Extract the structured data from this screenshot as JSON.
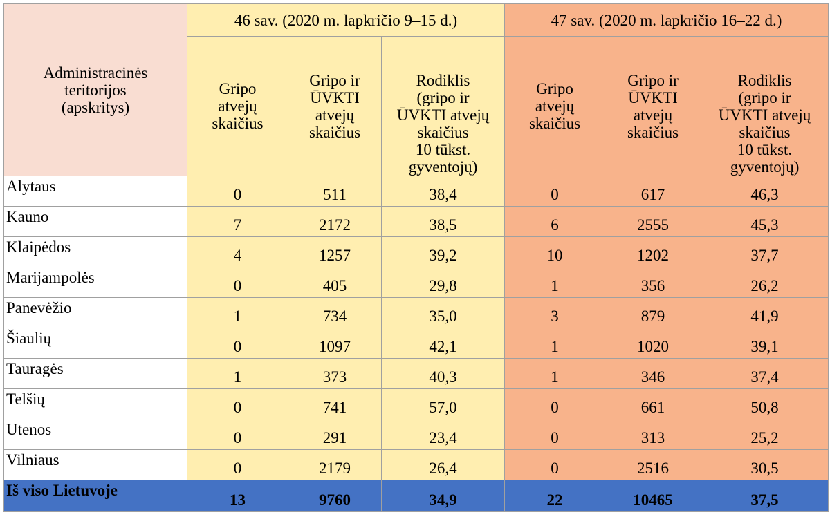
{
  "header": {
    "admin_col": [
      "Administracinės",
      "teritorijos",
      "(apskritys)"
    ],
    "week46": "46 sav. (2020 m. lapkričio 9–15 d.)",
    "week47": "47 sav. (2020 m. lapkričio 16–22 d.)",
    "col_flu": [
      "Gripo",
      "atvejų",
      "skaičius"
    ],
    "col_flu_uvkti": [
      "Gripo ir",
      "ŪVKTI",
      "atvejų",
      "skaičius"
    ],
    "col_rate": [
      "Rodiklis",
      "(gripo ir",
      "ŪVKTI atvejų",
      "skaičius",
      "10 tūkst.",
      "gyventojų)"
    ]
  },
  "rows": [
    {
      "name": "Alytaus",
      "w46_flu": "0",
      "w46_all": "511",
      "w46_rate": "38,4",
      "w47_flu": "0",
      "w47_all": "617",
      "w47_rate": "46,3"
    },
    {
      "name": "Kauno",
      "w46_flu": "7",
      "w46_all": "2172",
      "w46_rate": "38,5",
      "w47_flu": "6",
      "w47_all": "2555",
      "w47_rate": "45,3"
    },
    {
      "name": "Klaipėdos",
      "w46_flu": "4",
      "w46_all": "1257",
      "w46_rate": "39,2",
      "w47_flu": "10",
      "w47_all": "1202",
      "w47_rate": "37,7"
    },
    {
      "name": "Marijampolės",
      "w46_flu": "0",
      "w46_all": "405",
      "w46_rate": "29,8",
      "w47_flu": "1",
      "w47_all": "356",
      "w47_rate": "26,2"
    },
    {
      "name": "Panevėžio",
      "w46_flu": "1",
      "w46_all": "734",
      "w46_rate": "35,0",
      "w47_flu": "3",
      "w47_all": "879",
      "w47_rate": "41,9"
    },
    {
      "name": "Šiaulių",
      "w46_flu": "0",
      "w46_all": "1097",
      "w46_rate": "42,1",
      "w47_flu": "1",
      "w47_all": "1020",
      "w47_rate": "39,1"
    },
    {
      "name": "Tauragės",
      "w46_flu": "1",
      "w46_all": "373",
      "w46_rate": "40,3",
      "w47_flu": "1",
      "w47_all": "346",
      "w47_rate": "37,4"
    },
    {
      "name": "Telšių",
      "w46_flu": "0",
      "w46_all": "741",
      "w46_rate": "57,0",
      "w47_flu": "0",
      "w47_all": "661",
      "w47_rate": "50,8"
    },
    {
      "name": "Utenos",
      "w46_flu": "0",
      "w46_all": "291",
      "w46_rate": "23,4",
      "w47_flu": "0",
      "w47_all": "313",
      "w47_rate": "25,2"
    },
    {
      "name": "Vilniaus",
      "w46_flu": "0",
      "w46_all": "2179",
      "w46_rate": "26,4",
      "w47_flu": "0",
      "w47_all": "2516",
      "w47_rate": "30,5"
    }
  ],
  "total": {
    "name": "Iš viso Lietuvoje",
    "w46_flu": "13",
    "w46_all": "9760",
    "w46_rate": "34,9",
    "w47_flu": "22",
    "w47_all": "10465",
    "w47_rate": "37,5"
  },
  "colors": {
    "week46_bg": "#ffeeb0",
    "week47_bg": "#f8b38b",
    "admin_bg": "#f9ddd2",
    "total_bg": "#4472c4"
  }
}
